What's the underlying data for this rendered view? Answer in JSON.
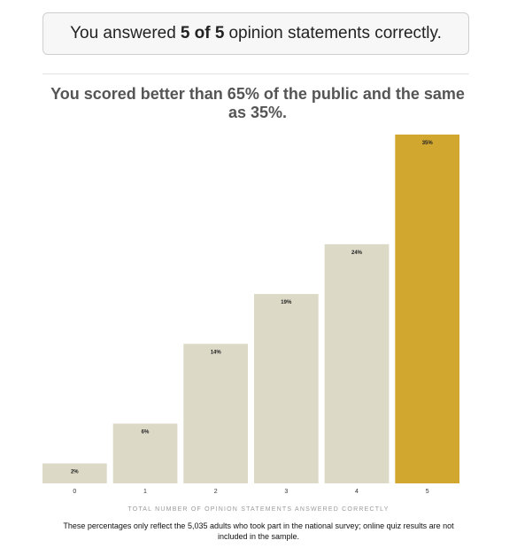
{
  "result": {
    "prefix": "You answered",
    "score": "5 of 5",
    "suffix": "opinion statements correctly."
  },
  "headline": "You scored better than 65% of the public and the same as 35%.",
  "footnote": "These percentages only reflect the 5,035 adults who took part in the national survey; online quiz results are not included in the sample.",
  "colors": {
    "bar": "#dcd9c6",
    "highlight": "#d2a730"
  },
  "chart_data": {
    "type": "bar",
    "categories": [
      "0",
      "1",
      "2",
      "3",
      "4",
      "5"
    ],
    "values": [
      2,
      6,
      14,
      19,
      24,
      35
    ],
    "value_labels": [
      "2%",
      "6%",
      "14%",
      "19%",
      "24%",
      "35%"
    ],
    "highlight_index": 5,
    "xlabel": "TOTAL NUMBER OF OPINION STATEMENTS ANSWERED CORRECTLY",
    "ylabel": "",
    "ylim": [
      0,
      35
    ],
    "grid": false,
    "legend": "none"
  }
}
